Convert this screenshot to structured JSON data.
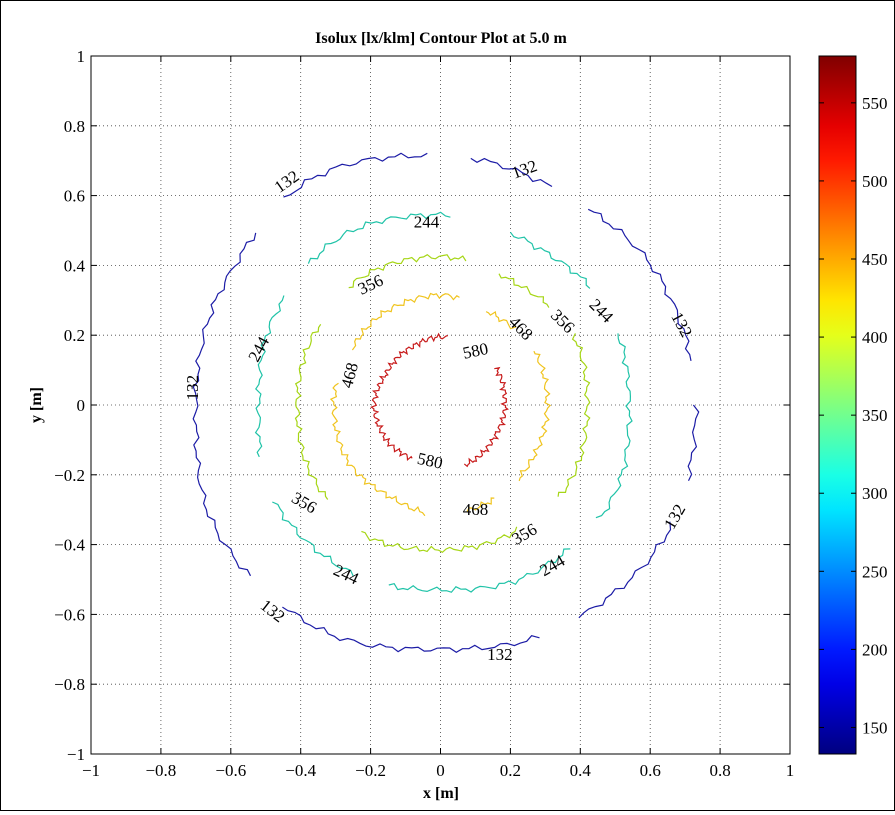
{
  "chart_data": {
    "type": "contour",
    "title": "Isolux [lx/klm] Contour Plot at 5.0 m",
    "xlabel": "x [m]",
    "ylabel": "y [m]",
    "xlim": [
      -1,
      1
    ],
    "ylim": [
      -1,
      1
    ],
    "xticks": [
      -1,
      -0.8,
      -0.6,
      -0.4,
      -0.2,
      0,
      0.2,
      0.4,
      0.6,
      0.8,
      1
    ],
    "yticks": [
      -1,
      -0.8,
      -0.6,
      -0.4,
      -0.2,
      0,
      0.2,
      0.4,
      0.6,
      0.8,
      1
    ],
    "grid": true,
    "colorbar": {
      "range": [
        133,
        580
      ],
      "ticks": [
        150,
        200,
        250,
        300,
        350,
        400,
        450,
        500,
        550
      ],
      "colormap": "jet"
    },
    "levels": [
      {
        "value": 132,
        "label": "132",
        "color": "#1c1ca6",
        "segments": [
          {
            "from": 93,
            "to": 127
          },
          {
            "from": 137,
            "to": 222
          },
          {
            "from": 232,
            "to": 293
          },
          {
            "from": 303,
            "to": 333
          },
          {
            "from": 343,
            "to": 0
          },
          {
            "from": 10,
            "to": 53
          },
          {
            "from": 63,
            "to": 83
          }
        ],
        "radius": {
          "r": [
            0.73,
            0.725,
            0.7,
            0.715,
            0.745,
            0.71,
            0.7,
            0.735,
            0.73,
            0.7,
            0.725,
            0.745
          ]
        },
        "labels": [
          {
            "text": "132",
            "x": 0.24,
            "y": 0.675,
            "angle": -20
          },
          {
            "text": "132",
            "x": -0.44,
            "y": 0.64,
            "angle": -35
          },
          {
            "text": "132",
            "x": -0.71,
            "y": 0.05,
            "angle": -90
          },
          {
            "text": "132",
            "x": -0.48,
            "y": -0.59,
            "angle": 38
          },
          {
            "text": "132",
            "x": 0.17,
            "y": -0.715,
            "angle": 0
          },
          {
            "text": "132",
            "x": 0.67,
            "y": -0.32,
            "angle": -60
          },
          {
            "text": "132",
            "x": 0.69,
            "y": 0.23,
            "angle": 62
          }
        ]
      },
      {
        "value": 244,
        "label": "244",
        "color": "#20c3a8",
        "segments": [
          {
            "from": 87,
            "to": 133
          },
          {
            "from": 145,
            "to": 196
          },
          {
            "from": 210,
            "to": 243
          },
          {
            "from": 254,
            "to": 312
          },
          {
            "from": 324,
            "to": 22
          },
          {
            "from": 38,
            "to": 68
          }
        ],
        "radius": {
          "r": [
            0.54,
            0.55,
            0.53,
            0.545,
            0.56,
            0.54,
            0.52,
            0.55,
            0.545,
            0.53,
            0.55,
            0.56
          ]
        },
        "labels": [
          {
            "text": "244",
            "x": -0.04,
            "y": 0.525,
            "angle": 0
          },
          {
            "text": "244",
            "x": -0.52,
            "y": 0.16,
            "angle": -62
          },
          {
            "text": "244",
            "x": -0.27,
            "y": -0.485,
            "angle": 25
          },
          {
            "text": "244",
            "x": 0.32,
            "y": -0.46,
            "angle": -30
          },
          {
            "text": "244",
            "x": 0.46,
            "y": 0.27,
            "angle": 45
          }
        ]
      },
      {
        "value": 356,
        "label": "356",
        "color": "#a6d616",
        "segments": [
          {
            "from": 80,
            "to": 128
          },
          {
            "from": 146,
            "to": 220
          },
          {
            "from": 238,
            "to": 302
          },
          {
            "from": 322,
            "to": 28
          },
          {
            "from": 42,
            "to": 66
          }
        ],
        "radius": {
          "r": [
            0.42,
            0.43,
            0.41,
            0.425,
            0.43,
            0.415,
            0.41,
            0.42,
            0.43,
            0.415,
            0.42,
            0.43
          ]
        },
        "labels": [
          {
            "text": "356",
            "x": -0.2,
            "y": 0.345,
            "angle": -25
          },
          {
            "text": "356",
            "x": -0.39,
            "y": -0.28,
            "angle": 30
          },
          {
            "text": "356",
            "x": 0.24,
            "y": -0.37,
            "angle": -30
          },
          {
            "text": "356",
            "x": 0.35,
            "y": 0.24,
            "angle": 45
          }
        ]
      },
      {
        "value": 468,
        "label": "468",
        "color": "#f0c41e",
        "segments": [
          {
            "from": 80,
            "to": 148
          },
          {
            "from": 168,
            "to": 262
          },
          {
            "from": 284,
            "to": 300
          },
          {
            "from": 316,
            "to": 30
          },
          {
            "from": 46,
            "to": 64
          }
        ],
        "radius": {
          "r": [
            0.305,
            0.31,
            0.3,
            0.315,
            0.31,
            0.3,
            0.305,
            0.31,
            0.3,
            0.315,
            0.31,
            0.305
          ]
        },
        "labels": [
          {
            "text": "468",
            "x": -0.26,
            "y": 0.085,
            "angle": -75
          },
          {
            "text": "468",
            "x": 0.1,
            "y": -0.3,
            "angle": 0
          },
          {
            "text": "468",
            "x": 0.23,
            "y": 0.22,
            "angle": 45
          }
        ]
      },
      {
        "value": 580,
        "label": "580",
        "color": "#c81c1c",
        "segments": [
          {
            "from": 84,
            "to": 242
          },
          {
            "from": 292,
            "to": 34
          }
        ],
        "radius": {
          "r": [
            0.185,
            0.19,
            0.18,
            0.195,
            0.185,
            0.18,
            0.19,
            0.185,
            0.175,
            0.19,
            0.185,
            0.18
          ]
        },
        "labels": [
          {
            "text": "580",
            "x": 0.1,
            "y": 0.155,
            "angle": -12
          },
          {
            "text": "580",
            "x": -0.03,
            "y": -0.16,
            "angle": 12
          }
        ]
      }
    ]
  }
}
